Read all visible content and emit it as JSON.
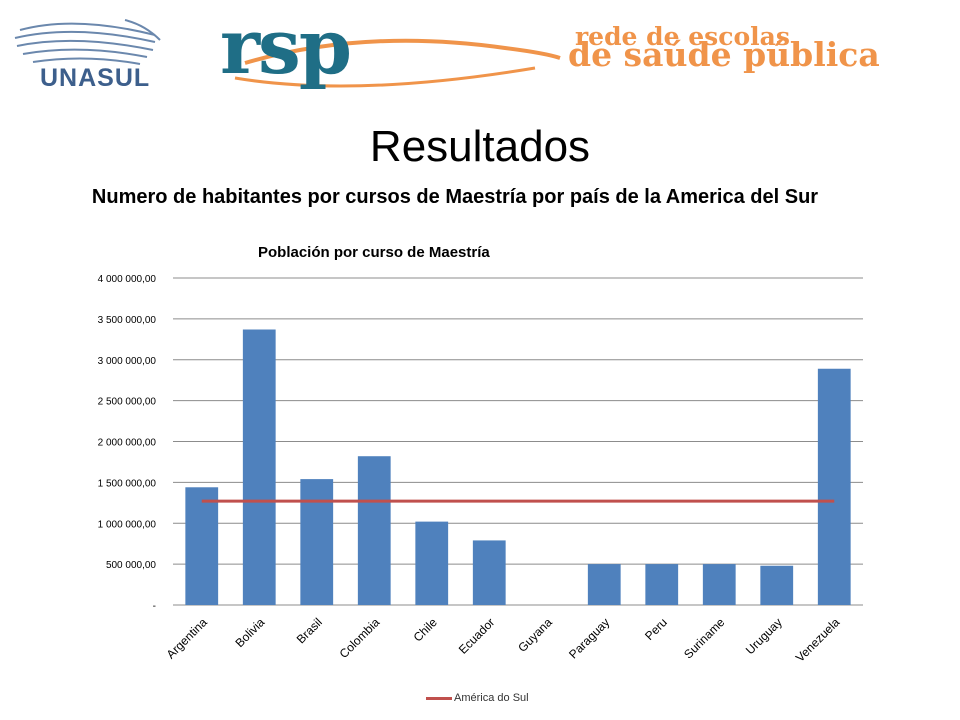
{
  "header": {
    "unasul_logo": "UNASUL",
    "rsp_logo": "rsp",
    "rede_line1": "rede de escolas",
    "rede_line2": "de saúde pública"
  },
  "slide": {
    "title": "Resultados",
    "subtitle": "Numero de habitantes por cursos de Maestría por país de la America del Sur"
  },
  "chart_data": {
    "type": "bar",
    "title": "Población por curso de Maestría",
    "categories": [
      "Argentina",
      "Bolivia",
      "Brasil",
      "Colombia",
      "Chile",
      "Ecuador",
      "Guyana",
      "Paraguay",
      "Peru",
      "Suriname",
      "Uruguay",
      "Venezuela"
    ],
    "series": [
      {
        "name": "",
        "type": "bar",
        "color": "#4f81bd",
        "values": [
          1440000,
          3370000,
          1540000,
          1820000,
          1020000,
          790000,
          0,
          500000,
          500000,
          500000,
          480000,
          2890000
        ]
      },
      {
        "name": "América do Sul",
        "type": "line",
        "color": "#c0504d",
        "values": [
          1270000,
          1270000,
          1270000,
          1270000,
          1270000,
          1270000,
          1270000,
          1270000,
          1270000,
          1270000,
          1270000,
          1270000
        ]
      }
    ],
    "yticks": [
      "-",
      "500 000,00",
      "1 000 000,00",
      "1 500 000,00",
      "2 000 000,00",
      "2 500 000,00",
      "3 000 000,00",
      "3 500 000,00",
      "4 000 000,00"
    ],
    "ylim": [
      0,
      4000000
    ],
    "grid": true,
    "legend": "bottom"
  }
}
